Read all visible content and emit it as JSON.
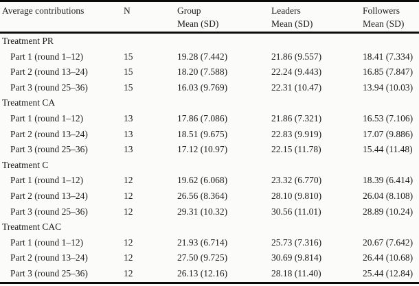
{
  "header": {
    "contributions": "Average contributions",
    "n": "N",
    "group": {
      "line1": "Group",
      "line2": "Mean (SD)"
    },
    "leaders": {
      "line1": "Leaders",
      "line2": "Mean (SD)"
    },
    "followers": {
      "line1": "Followers",
      "line2": "Mean (SD)"
    }
  },
  "sections": [
    {
      "title": "Treatment PR",
      "rows": [
        {
          "label": "Part 1 (round 1–12)",
          "n": "15",
          "group": "19.28 (7.442)",
          "leaders": "21.86 (9.557)",
          "followers": "18.41 (7.334)"
        },
        {
          "label": "Part 2 (round 13–24)",
          "n": "15",
          "group": "18.20 (7.588)",
          "leaders": "22.24 (9.443)",
          "followers": "16.85 (7.847)"
        },
        {
          "label": "Part 3 (round 25–36)",
          "n": "15",
          "group": "16.03 (9.769)",
          "leaders": "22.31 (10.47)",
          "followers": "13.94 (10.03)"
        }
      ]
    },
    {
      "title": "Treatment CA",
      "rows": [
        {
          "label": "Part 1 (round 1–12)",
          "n": "13",
          "group": "17.86 (7.086)",
          "leaders": "21.86 (7.321)",
          "followers": "16.53 (7.106)"
        },
        {
          "label": "Part 2 (round 13–24)",
          "n": "13",
          "group": "18.51 (9.675)",
          "leaders": "22.83 (9.919)",
          "followers": "17.07 (9.886)"
        },
        {
          "label": "Part 3 (round 25–36)",
          "n": "13",
          "group": "17.12 (10.97)",
          "leaders": "22.15 (11.78)",
          "followers": "15.44 (11.48)"
        }
      ]
    },
    {
      "title": "Treatment C",
      "rows": [
        {
          "label": "Part 1 (round 1–12)",
          "n": "12",
          "group": "19.62 (6.068)",
          "leaders": "23.32 (6.770)",
          "followers": "18.39 (6.414)"
        },
        {
          "label": "Part 2 (round 13–24)",
          "n": "12",
          "group": "26.56 (8.364)",
          "leaders": "28.10 (9.810)",
          "followers": "26.04 (8.108)"
        },
        {
          "label": "Part 3 (round 25–36)",
          "n": "12",
          "group": "29.31 (10.32)",
          "leaders": "30.56 (11.01)",
          "followers": "28.89 (10.24)"
        }
      ]
    },
    {
      "title": "Treatment CAC",
      "rows": [
        {
          "label": "Part 1 (round 1–12)",
          "n": "12",
          "group": "21.93 (6.714)",
          "leaders": "25.73 (7.316)",
          "followers": "20.67 (7.642)"
        },
        {
          "label": "Part 2 (round 13–24)",
          "n": "12",
          "group": "27.50 (9.725)",
          "leaders": "30.69 (9.814)",
          "followers": "26.44 (10.68)"
        },
        {
          "label": "Part 3 (round 25–36)",
          "n": "12",
          "group": "26.13 (12.16)",
          "leaders": "28.18 (11.40)",
          "followers": "25.44 (12.84)"
        }
      ]
    }
  ]
}
